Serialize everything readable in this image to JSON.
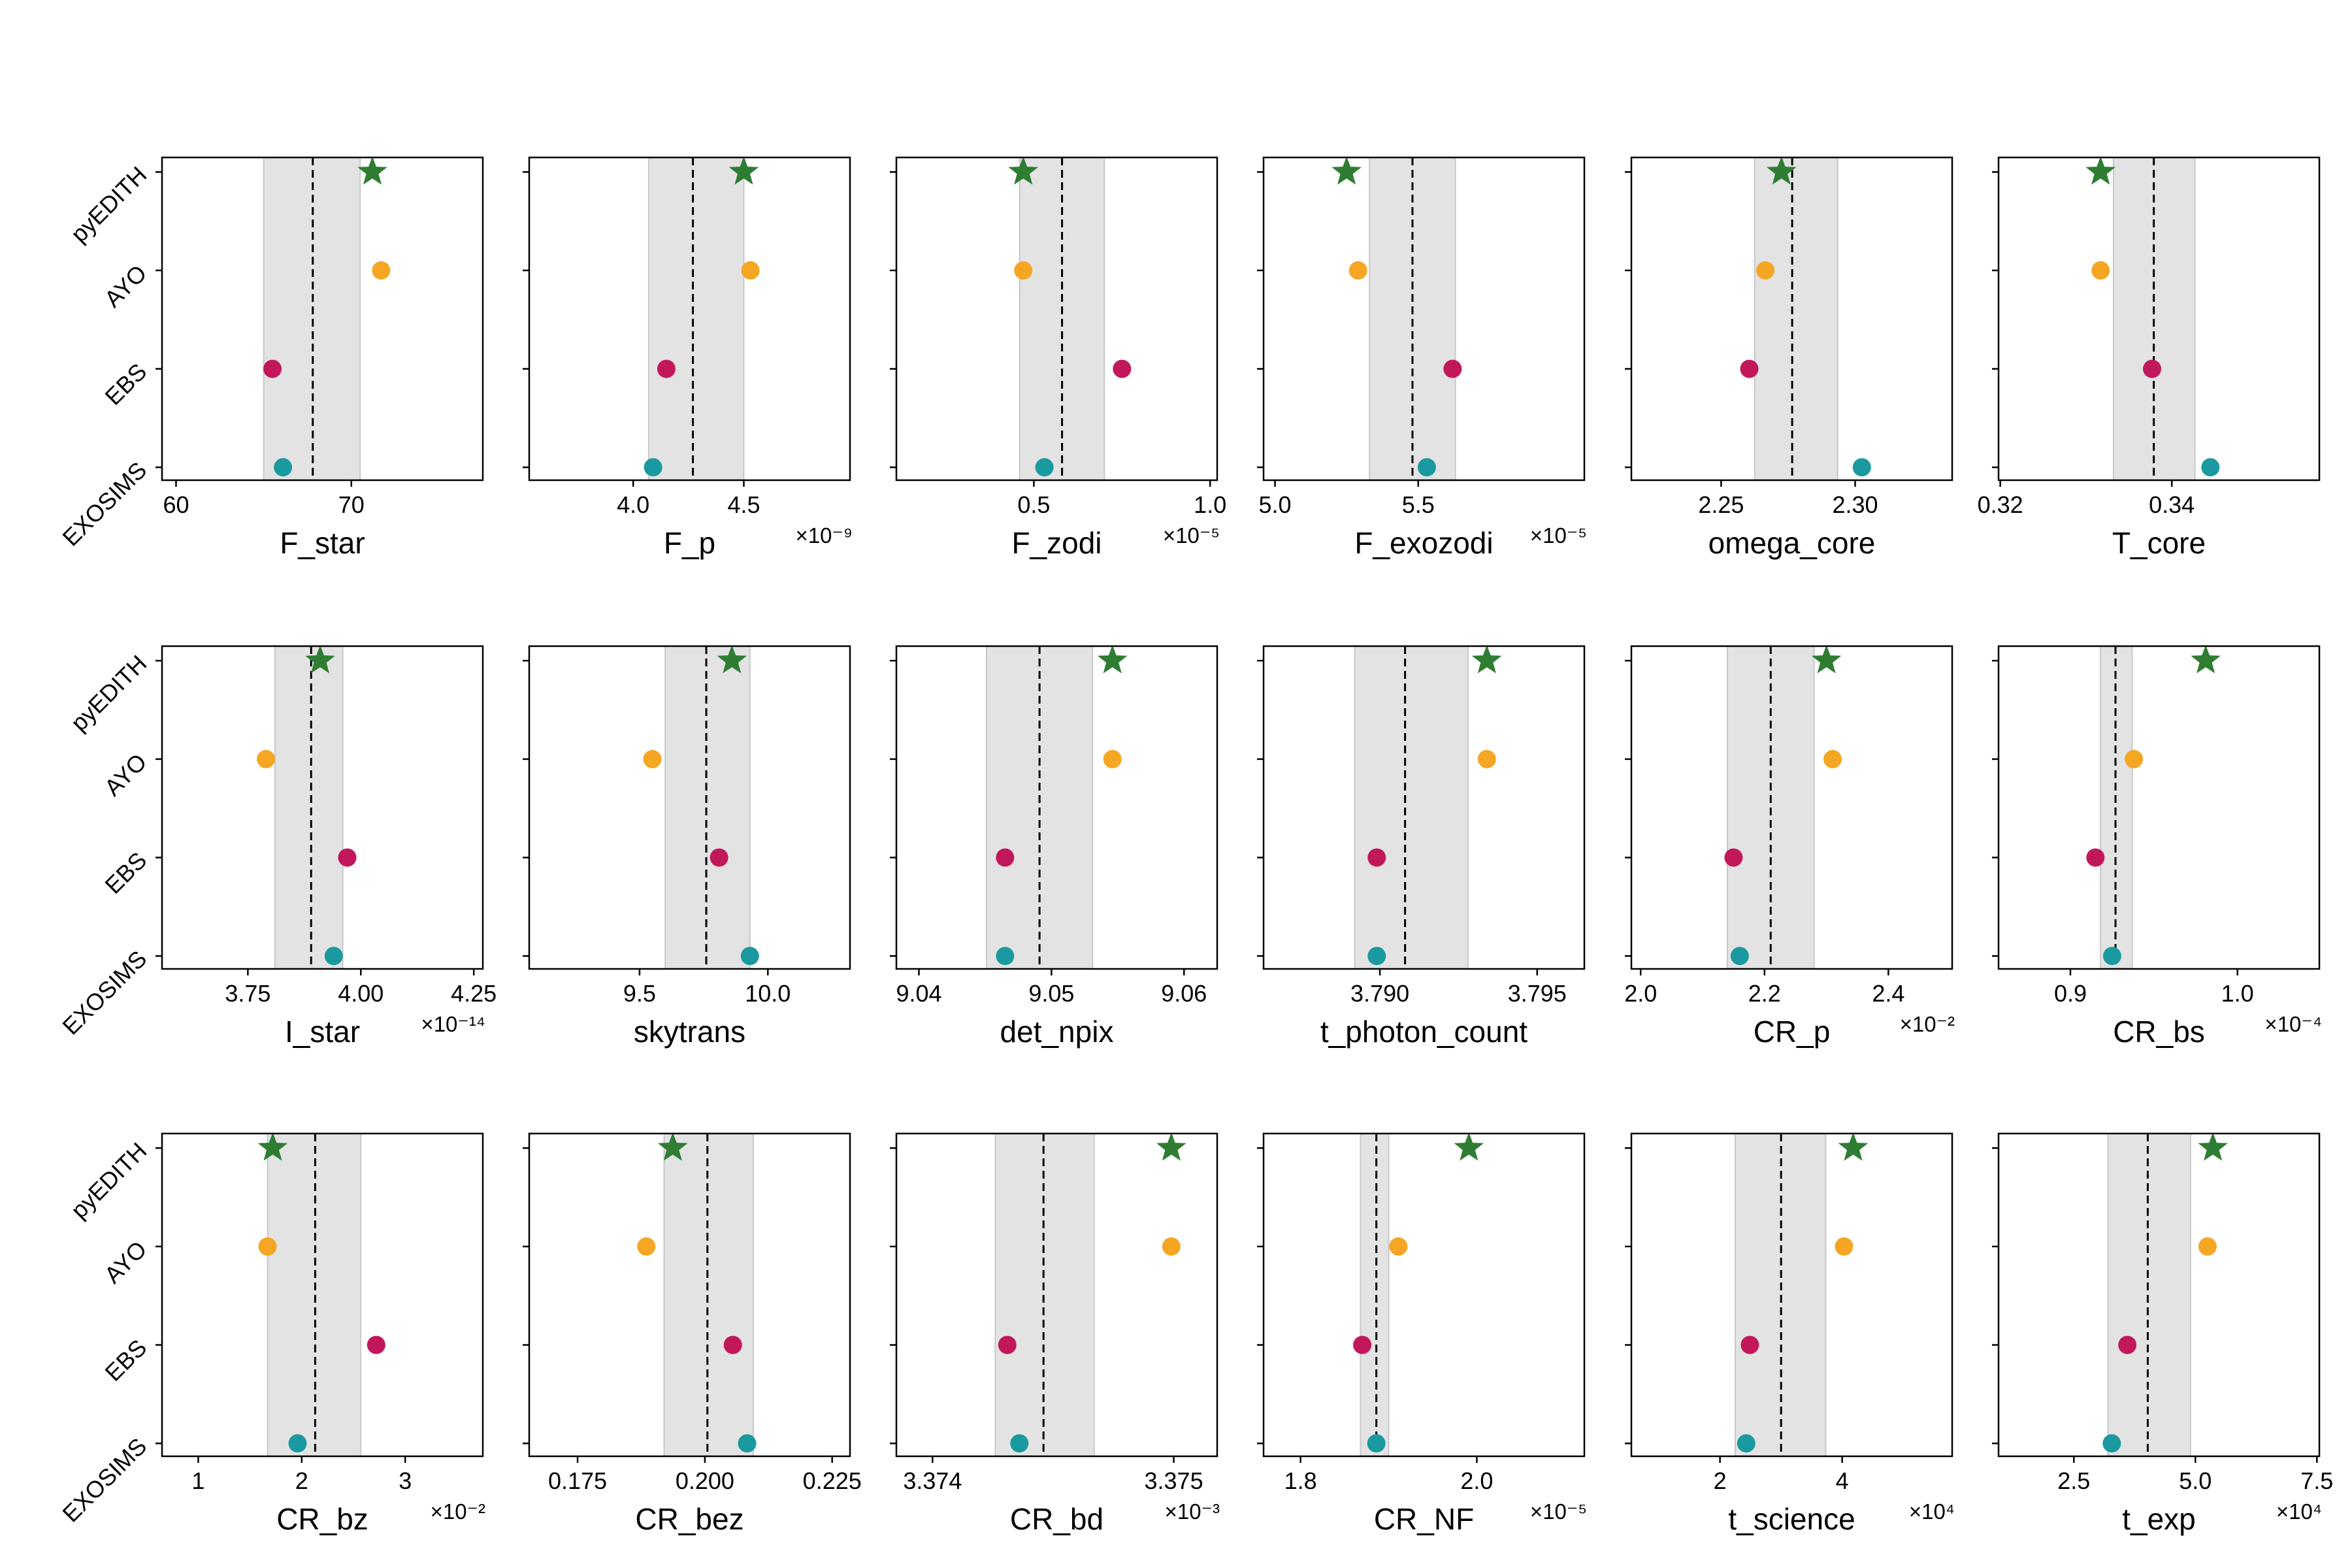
{
  "categories": [
    "pyEDITH",
    "AYO",
    "EBS",
    "EXOSIMS"
  ],
  "colors": {
    "pyEDITH": "#2e7d32",
    "AYO": "#f5a623",
    "EBS": "#c2185b",
    "EXOSIMS": "#1a9aa0",
    "band": "#e3e3e3",
    "band_edge": "#c8c8c8",
    "mean_line": "#000000"
  },
  "markers": {
    "pyEDITH": "star",
    "AYO": "circle",
    "EBS": "circle",
    "EXOSIMS": "circle"
  },
  "chart_data": [
    {
      "type": "scatter",
      "xlabel": "F_star",
      "multiplier": "",
      "xlim": [
        59.2,
        77.5
      ],
      "ticks": [
        60,
        70
      ],
      "tick_labels": [
        "60",
        "70"
      ],
      "mean": 67.8,
      "band": [
        65.0,
        70.5
      ],
      "values": {
        "pyEDITH": 71.2,
        "AYO": 71.7,
        "EBS": 65.5,
        "EXOSIMS": 66.1
      }
    },
    {
      "type": "scatter",
      "xlabel": "F_p",
      "multiplier": "×10⁻⁹",
      "xlim": [
        3.53,
        4.98
      ],
      "ticks": [
        4.0,
        4.5
      ],
      "tick_labels": [
        "4.0",
        "4.5"
      ],
      "mean": 4.27,
      "band": [
        4.07,
        4.5
      ],
      "values": {
        "pyEDITH": 4.5,
        "AYO": 4.53,
        "EBS": 4.15,
        "EXOSIMS": 4.09
      }
    },
    {
      "type": "scatter",
      "xlabel": "F_zodi",
      "multiplier": "×10⁻⁵",
      "xlim": [
        0.11,
        1.02
      ],
      "ticks": [
        0.5,
        1.0
      ],
      "tick_labels": [
        "0.5",
        "1.0"
      ],
      "mean": 0.58,
      "band": [
        0.46,
        0.7
      ],
      "values": {
        "pyEDITH": 0.47,
        "AYO": 0.47,
        "EBS": 0.75,
        "EXOSIMS": 0.53
      }
    },
    {
      "type": "scatter",
      "xlabel": "F_exozodi",
      "multiplier": "×10⁻⁵",
      "xlim": [
        4.96,
        6.08
      ],
      "ticks": [
        5.0,
        5.5
      ],
      "tick_labels": [
        "5.0",
        "5.5"
      ],
      "mean": 5.48,
      "band": [
        5.33,
        5.63
      ],
      "values": {
        "pyEDITH": 5.25,
        "AYO": 5.29,
        "EBS": 5.62,
        "EXOSIMS": 5.53
      }
    },
    {
      "type": "scatter",
      "xlabel": "omega_core",
      "multiplier": "",
      "xlim": [
        2.2165,
        2.3362
      ],
      "ticks": [
        2.25,
        2.3
      ],
      "tick_labels": [
        "2.25",
        "2.30"
      ],
      "mean": 2.2765,
      "band": [
        2.2625,
        2.2935
      ],
      "values": {
        "pyEDITH": 2.2725,
        "AYO": 2.2665,
        "EBS": 2.2605,
        "EXOSIMS": 2.3025
      }
    },
    {
      "type": "scatter",
      "xlabel": "T_core",
      "multiplier": "",
      "xlim": [
        0.3198,
        0.3572
      ],
      "ticks": [
        0.32,
        0.34
      ],
      "tick_labels": [
        "0.32",
        "0.34"
      ],
      "mean": 0.3379,
      "band": [
        0.3332,
        0.3427
      ],
      "values": {
        "pyEDITH": 0.3317,
        "AYO": 0.3317,
        "EBS": 0.3377,
        "EXOSIMS": 0.3445
      }
    },
    {
      "type": "scatter",
      "xlabel": "I_star",
      "multiplier": "×10⁻¹⁴",
      "xlim": [
        3.56,
        4.27
      ],
      "ticks": [
        3.75,
        4.0,
        4.25
      ],
      "tick_labels": [
        "3.75",
        "4.00",
        "4.25"
      ],
      "mean": 3.89,
      "band": [
        3.81,
        3.96
      ],
      "values": {
        "pyEDITH": 3.91,
        "AYO": 3.79,
        "EBS": 3.97,
        "EXOSIMS": 3.94
      }
    },
    {
      "type": "scatter",
      "xlabel": "skytrans",
      "multiplier": "",
      "xlim": [
        9.07,
        10.32
      ],
      "ticks": [
        9.5,
        10.0
      ],
      "tick_labels": [
        "9.5",
        "10.0"
      ],
      "mean": 9.76,
      "band": [
        9.6,
        9.93
      ],
      "values": {
        "pyEDITH": 9.86,
        "AYO": 9.55,
        "EBS": 9.81,
        "EXOSIMS": 9.93
      }
    },
    {
      "type": "scatter",
      "xlabel": "det_npix",
      "multiplier": "",
      "xlim": [
        9.0383,
        9.0625
      ],
      "ticks": [
        9.04,
        9.05,
        9.06
      ],
      "tick_labels": [
        "9.04",
        "9.05",
        "9.06"
      ],
      "mean": 9.0491,
      "band": [
        9.0451,
        9.0531
      ],
      "values": {
        "pyEDITH": 9.0546,
        "AYO": 9.0546,
        "EBS": 9.0465,
        "EXOSIMS": 9.0465
      }
    },
    {
      "type": "scatter",
      "xlabel": "t_photon_count",
      "multiplier": "",
      "xlim": [
        3.7863,
        3.7965
      ],
      "ticks": [
        3.79,
        3.795
      ],
      "tick_labels": [
        "3.790",
        "3.795"
      ],
      "mean": 3.7908,
      "band": [
        3.7892,
        3.7928
      ],
      "values": {
        "pyEDITH": 3.7934,
        "AYO": 3.7934,
        "EBS": 3.7899,
        "EXOSIMS": 3.7899
      }
    },
    {
      "type": "scatter",
      "xlabel": "CR_p",
      "multiplier": "×10⁻²",
      "xlim": [
        1.985,
        2.503
      ],
      "ticks": [
        2.0,
        2.2,
        2.4
      ],
      "tick_labels": [
        "2.0",
        "2.2",
        "2.4"
      ],
      "mean": 2.21,
      "band": [
        2.14,
        2.28
      ],
      "values": {
        "pyEDITH": 2.3,
        "AYO": 2.31,
        "EBS": 2.15,
        "EXOSIMS": 2.16
      }
    },
    {
      "type": "scatter",
      "xlabel": "CR_bs",
      "multiplier": "×10⁻⁴",
      "xlim": [
        0.857,
        1.049
      ],
      "ticks": [
        0.9,
        1.0
      ],
      "tick_labels": [
        "0.9",
        "1.0"
      ],
      "mean": 0.927,
      "band": [
        0.918,
        0.937
      ],
      "values": {
        "pyEDITH": 0.981,
        "AYO": 0.938,
        "EBS": 0.915,
        "EXOSIMS": 0.925
      }
    },
    {
      "type": "scatter",
      "xlabel": "CR_bz",
      "multiplier": "×10⁻²",
      "xlim": [
        0.65,
        3.75
      ],
      "ticks": [
        1,
        2,
        3
      ],
      "tick_labels": [
        "1",
        "2",
        "3"
      ],
      "mean": 2.13,
      "band": [
        1.67,
        2.57
      ],
      "values": {
        "pyEDITH": 1.72,
        "AYO": 1.67,
        "EBS": 2.72,
        "EXOSIMS": 1.96
      }
    },
    {
      "type": "scatter",
      "xlabel": "CR_bez",
      "multiplier": "",
      "xlim": [
        0.1655,
        0.2285
      ],
      "ticks": [
        0.175,
        0.2,
        0.225
      ],
      "tick_labels": [
        "0.175",
        "0.200",
        "0.225"
      ],
      "mean": 0.2005,
      "band": [
        0.192,
        0.2095
      ],
      "values": {
        "pyEDITH": 0.1937,
        "AYO": 0.1885,
        "EBS": 0.2055,
        "EXOSIMS": 0.2083
      }
    },
    {
      "type": "scatter",
      "xlabel": "CR_bd",
      "multiplier": "×10⁻³",
      "xlim": [
        3.37385,
        3.37518
      ],
      "ticks": [
        3.374,
        3.375
      ],
      "tick_labels": [
        "3.374",
        "3.375"
      ],
      "mean": 3.37446,
      "band": [
        3.37426,
        3.37467
      ],
      "values": {
        "pyEDITH": 3.37499,
        "AYO": 3.37499,
        "EBS": 3.37431,
        "EXOSIMS": 3.37436
      }
    },
    {
      "type": "scatter",
      "xlabel": "CR_NF",
      "multiplier": "×10⁻⁵",
      "xlim": [
        1.758,
        2.122
      ],
      "ticks": [
        1.8,
        2.0
      ],
      "tick_labels": [
        "1.8",
        "2.0"
      ],
      "mean": 1.886,
      "band": [
        1.868,
        1.9
      ],
      "values": {
        "pyEDITH": 1.991,
        "AYO": 1.911,
        "EBS": 1.87,
        "EXOSIMS": 1.886
      }
    },
    {
      "type": "scatter",
      "xlabel": "t_science",
      "multiplier": "×10⁴",
      "xlim": [
        0.55,
        5.8
      ],
      "ticks": [
        2,
        4
      ],
      "tick_labels": [
        "2",
        "4"
      ],
      "mean": 3.0,
      "band": [
        2.25,
        3.73
      ],
      "values": {
        "pyEDITH": 4.18,
        "AYO": 4.03,
        "EBS": 2.49,
        "EXOSIMS": 2.43
      }
    },
    {
      "type": "scatter",
      "xlabel": "t_exp",
      "multiplier": "×10⁴",
      "xlim": [
        0.95,
        7.55
      ],
      "ticks": [
        2.5,
        5.0,
        7.5
      ],
      "tick_labels": [
        "2.5",
        "5.0",
        "7.5"
      ],
      "mean": 4.02,
      "band": [
        3.2,
        4.9
      ],
      "values": {
        "pyEDITH": 5.36,
        "AYO": 5.25,
        "EBS": 3.6,
        "EXOSIMS": 3.28
      }
    }
  ]
}
